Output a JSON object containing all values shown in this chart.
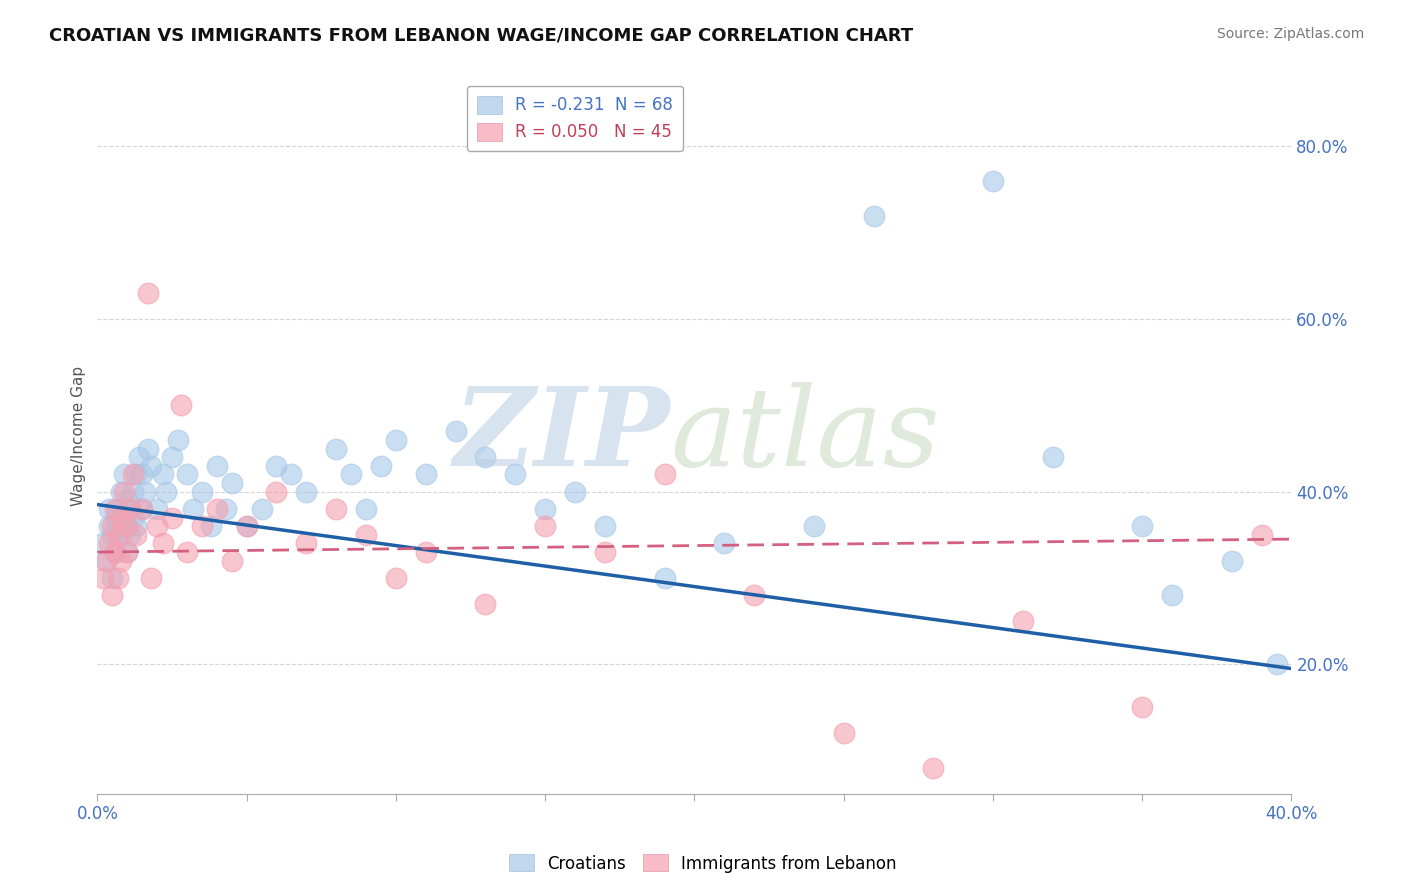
{
  "title": "CROATIAN VS IMMIGRANTS FROM LEBANON WAGE/INCOME GAP CORRELATION CHART",
  "source": "Source: ZipAtlas.com",
  "ylabel": "Wage/Income Gap",
  "legend_entries": [
    {
      "label": "R = -0.231  N = 68",
      "color": "#a8c8e8"
    },
    {
      "label": "R = 0.050   N = 45",
      "color": "#f4a0b0"
    }
  ],
  "croatians_label": "Croatians",
  "lebanon_label": "Immigrants from Lebanon",
  "croatians_color": "#a8c8e8",
  "lebanon_color": "#f4a0b0",
  "trendline_croatians_color": "#1f5fa6",
  "trendline_lebanon_color": "#d46080",
  "xlim": [
    0.0,
    0.4
  ],
  "ylim": [
    0.05,
    0.88
  ],
  "croatians_x": [
    0.002,
    0.003,
    0.004,
    0.004,
    0.005,
    0.005,
    0.006,
    0.006,
    0.007,
    0.007,
    0.008,
    0.008,
    0.009,
    0.009,
    0.01,
    0.01,
    0.01,
    0.011,
    0.011,
    0.012,
    0.012,
    0.013,
    0.013,
    0.014,
    0.015,
    0.015,
    0.016,
    0.017,
    0.018,
    0.02,
    0.022,
    0.023,
    0.025,
    0.027,
    0.03,
    0.032,
    0.035,
    0.038,
    0.04,
    0.043,
    0.045,
    0.05,
    0.055,
    0.06,
    0.065,
    0.07,
    0.08,
    0.085,
    0.09,
    0.095,
    0.1,
    0.11,
    0.12,
    0.13,
    0.14,
    0.15,
    0.16,
    0.17,
    0.19,
    0.21,
    0.24,
    0.26,
    0.3,
    0.32,
    0.35,
    0.36,
    0.38,
    0.395
  ],
  "croatians_y": [
    0.34,
    0.32,
    0.36,
    0.38,
    0.3,
    0.35,
    0.33,
    0.37,
    0.36,
    0.38,
    0.35,
    0.4,
    0.37,
    0.42,
    0.33,
    0.36,
    0.39,
    0.35,
    0.38,
    0.37,
    0.4,
    0.42,
    0.36,
    0.44,
    0.38,
    0.42,
    0.4,
    0.45,
    0.43,
    0.38,
    0.42,
    0.4,
    0.44,
    0.46,
    0.42,
    0.38,
    0.4,
    0.36,
    0.43,
    0.38,
    0.41,
    0.36,
    0.38,
    0.43,
    0.42,
    0.4,
    0.45,
    0.42,
    0.38,
    0.43,
    0.46,
    0.42,
    0.47,
    0.44,
    0.42,
    0.38,
    0.4,
    0.36,
    0.3,
    0.34,
    0.36,
    0.72,
    0.76,
    0.44,
    0.36,
    0.28,
    0.32,
    0.2
  ],
  "lebanon_x": [
    0.002,
    0.003,
    0.004,
    0.005,
    0.005,
    0.006,
    0.006,
    0.007,
    0.007,
    0.008,
    0.008,
    0.009,
    0.01,
    0.01,
    0.011,
    0.012,
    0.013,
    0.015,
    0.017,
    0.018,
    0.02,
    0.022,
    0.025,
    0.028,
    0.03,
    0.035,
    0.04,
    0.045,
    0.05,
    0.06,
    0.07,
    0.08,
    0.09,
    0.1,
    0.11,
    0.13,
    0.15,
    0.17,
    0.19,
    0.22,
    0.25,
    0.28,
    0.31,
    0.35,
    0.39
  ],
  "lebanon_y": [
    0.3,
    0.32,
    0.34,
    0.28,
    0.36,
    0.33,
    0.38,
    0.3,
    0.35,
    0.32,
    0.37,
    0.4,
    0.33,
    0.36,
    0.38,
    0.42,
    0.35,
    0.38,
    0.63,
    0.3,
    0.36,
    0.34,
    0.37,
    0.5,
    0.33,
    0.36,
    0.38,
    0.32,
    0.36,
    0.4,
    0.34,
    0.38,
    0.35,
    0.3,
    0.33,
    0.27,
    0.36,
    0.33,
    0.42,
    0.28,
    0.12,
    0.08,
    0.25,
    0.15,
    0.35
  ],
  "yticks": [
    0.2,
    0.4,
    0.6,
    0.8
  ],
  "ytick_labels": [
    "20.0%",
    "40.0%",
    "60.0%",
    "80.0%"
  ],
  "background_color": "#ffffff",
  "grid_color": "#cccccc",
  "trendline_croatians_start_y": 0.385,
  "trendline_croatians_end_y": 0.195,
  "trendline_lebanon_start_y": 0.33,
  "trendline_lebanon_end_y": 0.345
}
